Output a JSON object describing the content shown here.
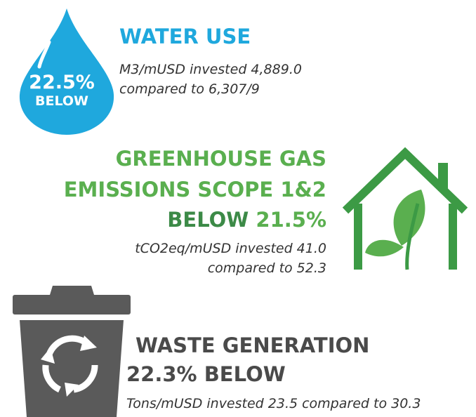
{
  "water": {
    "badge_value": "22.5%",
    "badge_label": "BELOW",
    "title": "WATER USE",
    "description": [
      "M3/mUSD invested 4,889.0",
      "compared to 6,307/9"
    ]
  },
  "greenhouse": {
    "title": [
      "GREENHOUSE GAS",
      "EMISSIONS SCOPE 1&2"
    ],
    "below_word": "BELOW",
    "below_value": "21.5%",
    "description": [
      "tCO2eq/mUSD invested 41.0",
      "compared to 52.3"
    ]
  },
  "waste": {
    "title": "WASTE GENERATION",
    "subtitle": "22.3% BELOW",
    "description": "Tons/mUSD invested 23.5 compared to 30.3"
  }
}
